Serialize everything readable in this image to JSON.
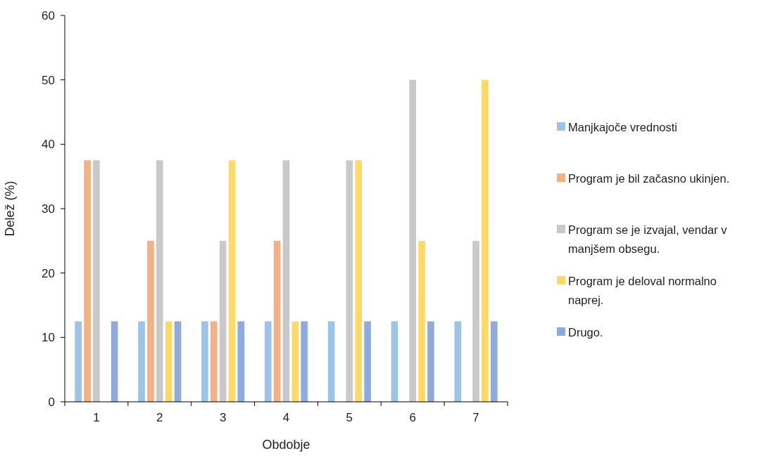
{
  "chart_data": {
    "type": "bar",
    "xlabel": "Obdobje",
    "ylabel": "Delež (%)",
    "categories": [
      "1",
      "2",
      "3",
      "4",
      "5",
      "6",
      "7"
    ],
    "ylim": [
      0,
      60
    ],
    "yticks": [
      0,
      10,
      20,
      30,
      40,
      50,
      60
    ],
    "grid": false,
    "legend": "right",
    "series": [
      {
        "name": "Manjkajoče vrednosti",
        "color": "#9dc3e6",
        "values": [
          12.5,
          12.5,
          12.5,
          12.5,
          12.5,
          12.5,
          12.5
        ]
      },
      {
        "name": "Program je bil začasno ukinjen.",
        "color": "#f4b183",
        "values": [
          37.5,
          25,
          12.5,
          25,
          0,
          0,
          0
        ]
      },
      {
        "name": "Program se je izvajal, vendar v manjšem obsegu.",
        "color": "#c9c9c9",
        "values": [
          37.5,
          37.5,
          25,
          37.5,
          37.5,
          50,
          25
        ]
      },
      {
        "name": "Program je deloval normalno naprej.",
        "color": "#ffd966",
        "values": [
          0,
          12.5,
          37.5,
          12.5,
          37.5,
          25,
          50
        ]
      },
      {
        "name": "Drugo.",
        "color": "#8faadc",
        "values": [
          12.5,
          12.5,
          12.5,
          12.5,
          12.5,
          12.5,
          12.5
        ]
      }
    ]
  }
}
